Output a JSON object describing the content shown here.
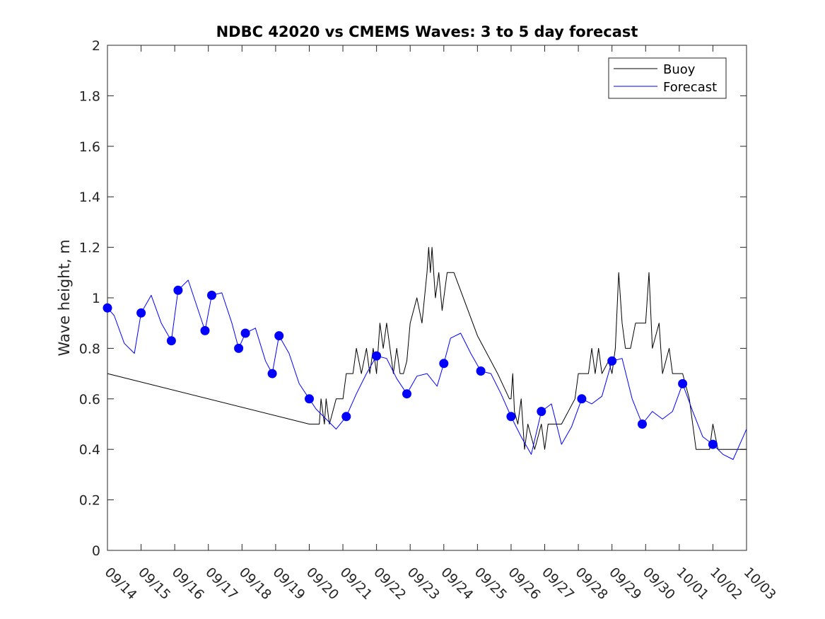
{
  "chart_data": {
    "type": "line",
    "title": "NDBC 42020 vs CMEMS Waves: 3 to 5 day forecast",
    "xlabel": "",
    "ylabel": "Wave height, m",
    "ylim": [
      0,
      2
    ],
    "yticks": [
      "0",
      "0.2",
      "0.4",
      "0.6",
      "0.8",
      "1",
      "1.2",
      "1.4",
      "1.6",
      "1.8",
      "2"
    ],
    "categories": [
      "09/14",
      "09/15",
      "09/16",
      "09/17",
      "09/18",
      "09/19",
      "09/20",
      "09/21",
      "09/22",
      "09/23",
      "09/24",
      "09/25",
      "09/26",
      "09/27",
      "09/28",
      "09/29",
      "09/30",
      "10/01",
      "10/02",
      "10/03"
    ],
    "xlim_days": [
      0,
      19
    ],
    "grid": false,
    "legend": {
      "placement": "top-right",
      "entries": [
        "Buoy",
        "Forecast"
      ]
    },
    "colors": {
      "buoy": "#000000",
      "forecast": "#0000ff",
      "markers": "#0000ff"
    },
    "series": [
      {
        "name": "Buoy",
        "points": [
          [
            0,
            0.7
          ],
          [
            6.0,
            0.5
          ],
          [
            6.3,
            0.5
          ],
          [
            6.35,
            0.6
          ],
          [
            6.45,
            0.5
          ],
          [
            6.5,
            0.6
          ],
          [
            6.6,
            0.5
          ],
          [
            6.7,
            0.55
          ],
          [
            6.8,
            0.6
          ],
          [
            7.0,
            0.6
          ],
          [
            7.1,
            0.7
          ],
          [
            7.3,
            0.7
          ],
          [
            7.4,
            0.8
          ],
          [
            7.55,
            0.7
          ],
          [
            7.7,
            0.8
          ],
          [
            7.8,
            0.7
          ],
          [
            7.9,
            0.8
          ],
          [
            8.0,
            0.7
          ],
          [
            8.1,
            0.9
          ],
          [
            8.2,
            0.8
          ],
          [
            8.3,
            0.9
          ],
          [
            8.4,
            0.8
          ],
          [
            8.5,
            0.7
          ],
          [
            8.6,
            0.8
          ],
          [
            8.7,
            0.7
          ],
          [
            8.8,
            0.7
          ],
          [
            8.9,
            0.75
          ],
          [
            9.0,
            0.9
          ],
          [
            9.2,
            1.0
          ],
          [
            9.35,
            0.9
          ],
          [
            9.5,
            1.1
          ],
          [
            9.55,
            1.2
          ],
          [
            9.6,
            1.1
          ],
          [
            9.65,
            1.2
          ],
          [
            9.75,
            1.0
          ],
          [
            9.85,
            1.1
          ],
          [
            9.95,
            0.95
          ],
          [
            10.1,
            1.1
          ],
          [
            10.25,
            1.1
          ],
          [
            10.3,
            1.1
          ],
          [
            11.0,
            0.85
          ],
          [
            11.6,
            0.7
          ],
          [
            11.95,
            0.6
          ],
          [
            12.0,
            0.6
          ],
          [
            12.05,
            0.7
          ],
          [
            12.1,
            0.55
          ],
          [
            12.2,
            0.5
          ],
          [
            12.3,
            0.6
          ],
          [
            12.4,
            0.4
          ],
          [
            12.5,
            0.5
          ],
          [
            12.6,
            0.45
          ],
          [
            12.7,
            0.4
          ],
          [
            12.9,
            0.5
          ],
          [
            13.0,
            0.4
          ],
          [
            13.1,
            0.5
          ],
          [
            13.5,
            0.5
          ],
          [
            13.9,
            0.6
          ],
          [
            14.0,
            0.7
          ],
          [
            14.3,
            0.7
          ],
          [
            14.4,
            0.8
          ],
          [
            14.5,
            0.7
          ],
          [
            14.6,
            0.8
          ],
          [
            14.7,
            0.7
          ],
          [
            14.9,
            0.75
          ],
          [
            15.0,
            0.7
          ],
          [
            15.1,
            0.8
          ],
          [
            15.2,
            1.1
          ],
          [
            15.3,
            0.9
          ],
          [
            15.4,
            0.8
          ],
          [
            15.55,
            0.8
          ],
          [
            15.7,
            0.9
          ],
          [
            16.0,
            0.9
          ],
          [
            16.1,
            1.1
          ],
          [
            16.2,
            0.8
          ],
          [
            16.4,
            0.9
          ],
          [
            16.5,
            0.7
          ],
          [
            16.7,
            0.8
          ],
          [
            16.8,
            0.7
          ],
          [
            17.0,
            0.7
          ],
          [
            17.05,
            0.7
          ],
          [
            17.1,
            0.7
          ],
          [
            17.3,
            0.6
          ],
          [
            17.5,
            0.4
          ],
          [
            17.9,
            0.4
          ],
          [
            18.0,
            0.5
          ],
          [
            18.15,
            0.4
          ],
          [
            18.3,
            0.4
          ],
          [
            18.5,
            0.4
          ],
          [
            19.0,
            0.4
          ]
        ]
      },
      {
        "name": "Forecast",
        "points": [
          [
            0.0,
            0.96
          ],
          [
            0.2,
            0.93
          ],
          [
            0.5,
            0.82
          ],
          [
            0.8,
            0.78
          ],
          [
            1.0,
            0.94
          ],
          [
            1.3,
            1.01
          ],
          [
            1.6,
            0.9
          ],
          [
            1.9,
            0.83
          ],
          [
            2.1,
            1.03
          ],
          [
            2.4,
            1.07
          ],
          [
            2.7,
            0.95
          ],
          [
            2.9,
            0.87
          ],
          [
            3.1,
            1.01
          ],
          [
            3.4,
            1.02
          ],
          [
            3.7,
            0.9
          ],
          [
            3.9,
            0.8
          ],
          [
            4.1,
            0.86
          ],
          [
            4.4,
            0.88
          ],
          [
            4.7,
            0.75
          ],
          [
            4.9,
            0.7
          ],
          [
            5.1,
            0.85
          ],
          [
            5.4,
            0.78
          ],
          [
            5.7,
            0.66
          ],
          [
            6.0,
            0.6
          ],
          [
            6.2,
            0.56
          ],
          [
            6.5,
            0.52
          ],
          [
            6.8,
            0.48
          ],
          [
            7.1,
            0.53
          ],
          [
            7.4,
            0.62
          ],
          [
            7.7,
            0.7
          ],
          [
            8.0,
            0.77
          ],
          [
            8.3,
            0.76
          ],
          [
            8.6,
            0.68
          ],
          [
            8.9,
            0.62
          ],
          [
            9.2,
            0.69
          ],
          [
            9.5,
            0.7
          ],
          [
            9.8,
            0.65
          ],
          [
            10.0,
            0.74
          ],
          [
            10.2,
            0.84
          ],
          [
            10.5,
            0.86
          ],
          [
            10.8,
            0.78
          ],
          [
            11.1,
            0.71
          ],
          [
            11.4,
            0.7
          ],
          [
            11.7,
            0.62
          ],
          [
            12.0,
            0.53
          ],
          [
            12.3,
            0.45
          ],
          [
            12.6,
            0.38
          ],
          [
            12.9,
            0.55
          ],
          [
            13.2,
            0.58
          ],
          [
            13.5,
            0.42
          ],
          [
            13.8,
            0.49
          ],
          [
            14.1,
            0.6
          ],
          [
            14.4,
            0.58
          ],
          [
            14.7,
            0.61
          ],
          [
            15.0,
            0.75
          ],
          [
            15.3,
            0.76
          ],
          [
            15.6,
            0.6
          ],
          [
            15.9,
            0.5
          ],
          [
            16.2,
            0.55
          ],
          [
            16.5,
            0.52
          ],
          [
            16.8,
            0.55
          ],
          [
            17.1,
            0.66
          ],
          [
            17.4,
            0.55
          ],
          [
            17.7,
            0.45
          ],
          [
            18.0,
            0.42
          ],
          [
            18.3,
            0.38
          ],
          [
            18.6,
            0.36
          ],
          [
            19.0,
            0.48
          ]
        ]
      }
    ]
  }
}
